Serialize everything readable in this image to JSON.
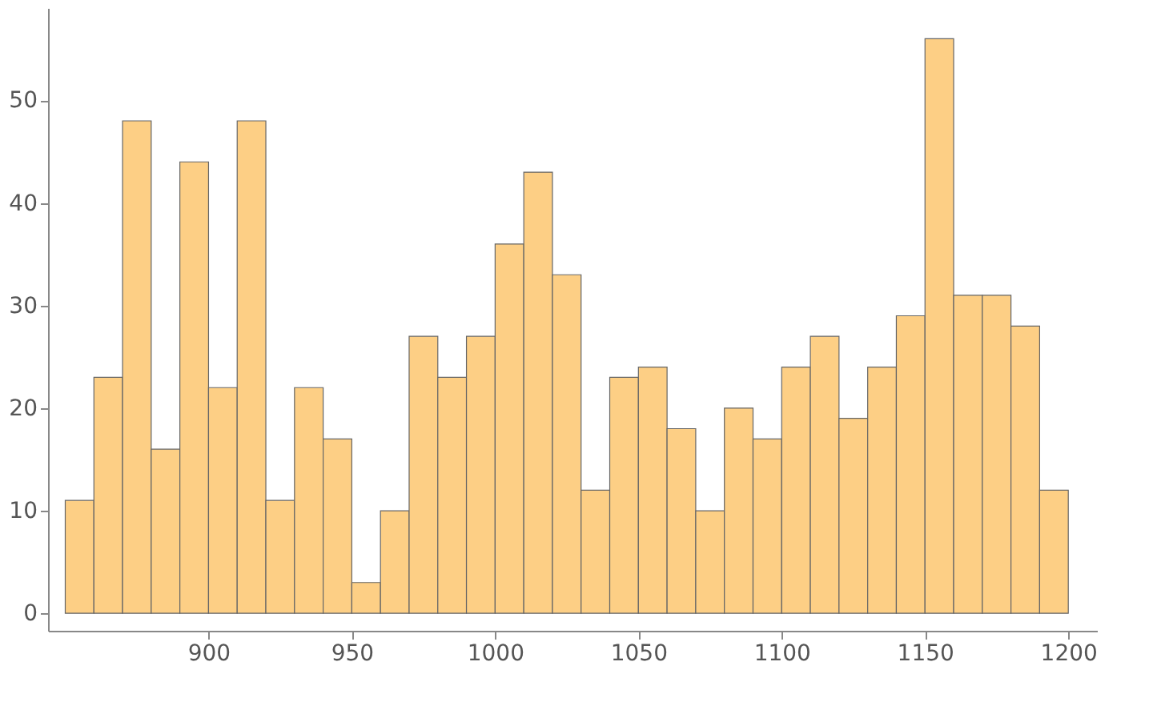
{
  "chart_data": {
    "type": "histogram",
    "bins": [
      850,
      860,
      870,
      880,
      890,
      900,
      910,
      920,
      930,
      940,
      950,
      960,
      970,
      980,
      990,
      1000,
      1010,
      1020,
      1030,
      1040,
      1050,
      1060,
      1070,
      1080,
      1090,
      1100,
      1110,
      1120,
      1130,
      1140,
      1150,
      1160,
      1170,
      1180,
      1190,
      1200
    ],
    "values": [
      11,
      23,
      48,
      16,
      44,
      22,
      48,
      11,
      22,
      17,
      3,
      10,
      27,
      23,
      27,
      36,
      43,
      33,
      12,
      23,
      24,
      18,
      10,
      20,
      17,
      24,
      27,
      19,
      24,
      29,
      56,
      31,
      31,
      28,
      12
    ],
    "color": "#fdcf85",
    "xlim": [
      844,
      1210
    ],
    "ylim": [
      -1.7,
      59
    ],
    "xticks": [
      900,
      950,
      1000,
      1050,
      1100,
      1150,
      1200
    ],
    "yticks": [
      0,
      10,
      20,
      30,
      40,
      50
    ],
    "grid": false
  }
}
